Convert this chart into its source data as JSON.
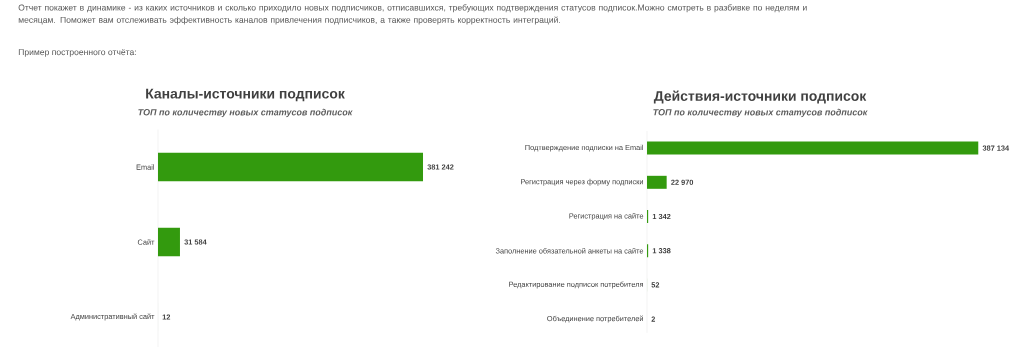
{
  "chart_data": [
    {
      "type": "bar",
      "orientation": "horizontal",
      "title": "Каналы-источники подписок",
      "subtitle": "ТОП по количеству новых статусов подписок",
      "categories": [
        "Email",
        "Сайт",
        "Административный сайт"
      ],
      "values": [
        381242,
        31584,
        12
      ],
      "value_labels": [
        "381 242",
        "31 584",
        "12"
      ],
      "color": "#339a0e",
      "annotations": [
        "Отчет покажет в динамике - из каких источников и сколько приходило новых подписчиков, отписавшихся, требующих подтверждения статусов подписок.Можно смотреть в разбивке по неделям и месяцам. Поможет вам отслеживать эффективность каналов привлечения подписчиков, а также проверять корректность интеграций.",
        "Пример построенного отчёта:"
      ]
    },
    {
      "type": "bar",
      "orientation": "horizontal",
      "title": "Действия-источники подписок",
      "subtitle": "ТОП по количеству новых статусов подписок",
      "categories": [
        "Подтверждение подписки на Email",
        "Регистрация через форму подписки",
        "Регистрация на сайте",
        "Заполнение обязательной анкеты на сайте",
        "Редактирование подписок потребителя",
        "Объединение потребителей"
      ],
      "values": [
        387134,
        22970,
        1342,
        1338,
        52,
        2
      ],
      "value_labels": [
        "387 134",
        "22 970",
        "1 342",
        "1 338",
        "52",
        "2"
      ],
      "color": "#339a0e"
    }
  ]
}
